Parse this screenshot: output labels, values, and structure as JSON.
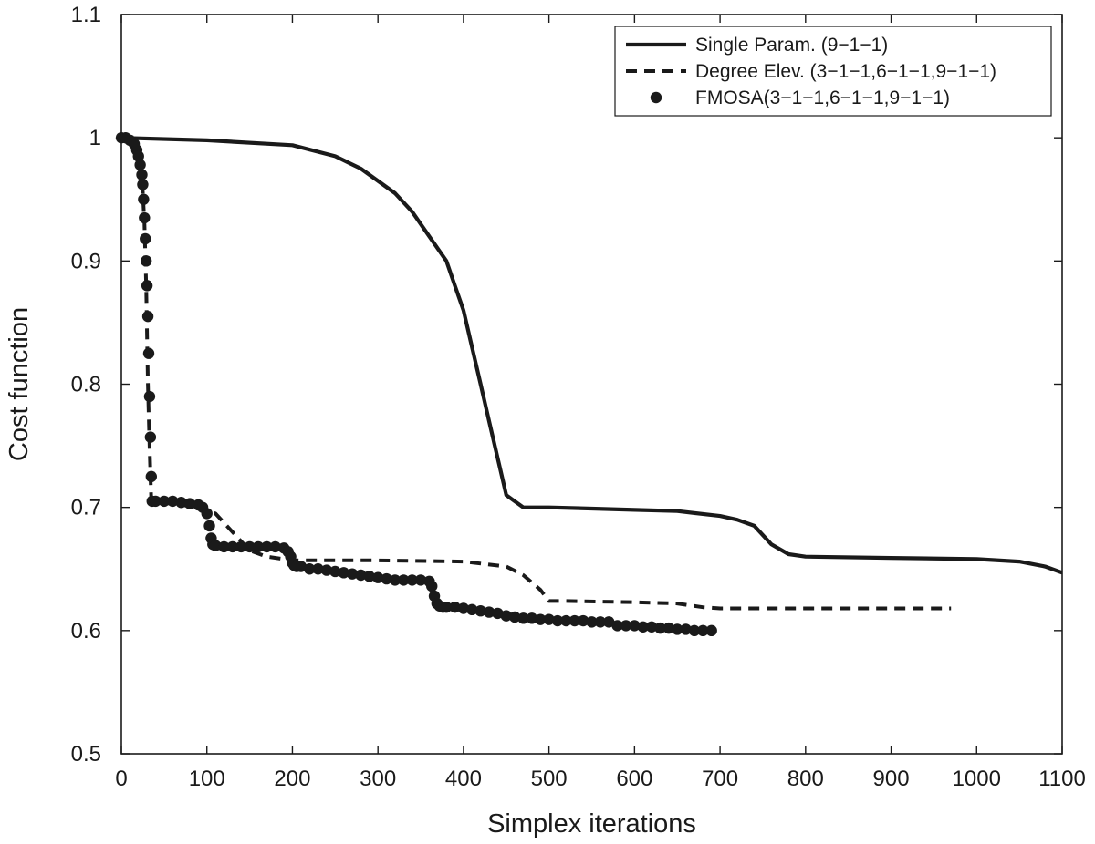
{
  "chart_data": {
    "type": "line",
    "title": "",
    "xlabel": "Simplex iterations",
    "ylabel": "Cost function",
    "xlim": [
      0,
      1100
    ],
    "ylim": [
      0.5,
      1.1
    ],
    "xticks": [
      0,
      100,
      200,
      300,
      400,
      500,
      600,
      700,
      800,
      900,
      1000,
      1100
    ],
    "yticks": [
      0.5,
      0.6,
      0.7,
      0.8,
      0.9,
      1,
      1.1
    ],
    "xtick_labels": [
      "0",
      "100",
      "200",
      "300",
      "400",
      "500",
      "600",
      "700",
      "800",
      "900",
      "1000",
      "1100"
    ],
    "ytick_labels": [
      "0.5",
      "0.6",
      "0.7",
      "0.8",
      "0.9",
      "1",
      "1.1"
    ],
    "grid": false,
    "legend_position": "top-right",
    "series": [
      {
        "name": "Single Param. (9−1−1)",
        "style": "solid",
        "color": "#1a1a1a",
        "x": [
          0,
          100,
          200,
          250,
          280,
          300,
          320,
          340,
          360,
          380,
          390,
          400,
          410,
          420,
          430,
          440,
          450,
          460,
          470,
          500,
          550,
          600,
          650,
          700,
          720,
          740,
          760,
          780,
          800,
          900,
          1000,
          1050,
          1080,
          1100
        ],
        "y": [
          1.0,
          0.998,
          0.994,
          0.985,
          0.975,
          0.965,
          0.955,
          0.94,
          0.92,
          0.9,
          0.88,
          0.86,
          0.83,
          0.8,
          0.77,
          0.74,
          0.71,
          0.705,
          0.7,
          0.7,
          0.699,
          0.698,
          0.697,
          0.693,
          0.69,
          0.685,
          0.67,
          0.662,
          0.66,
          0.659,
          0.658,
          0.656,
          0.652,
          0.647
        ]
      },
      {
        "name": "Degree Elev. (3−1−1,6−1−1,9−1−1)",
        "style": "dashed",
        "color": "#1a1a1a",
        "x": [
          0,
          10,
          20,
          24,
          27,
          29,
          31,
          33,
          35,
          40,
          60,
          90,
          110,
          130,
          150,
          170,
          190,
          200,
          220,
          300,
          400,
          450,
          470,
          490,
          500,
          520,
          600,
          650,
          680,
          700,
          800,
          970
        ],
        "y": [
          1.0,
          0.998,
          0.99,
          0.97,
          0.93,
          0.88,
          0.8,
          0.75,
          0.705,
          0.704,
          0.703,
          0.7,
          0.695,
          0.68,
          0.665,
          0.66,
          0.658,
          0.657,
          0.657,
          0.657,
          0.656,
          0.652,
          0.645,
          0.633,
          0.624,
          0.624,
          0.623,
          0.622,
          0.619,
          0.618,
          0.618,
          0.618
        ]
      },
      {
        "name": "FMOSA(3−1−1,6−1−1,9−1−1)",
        "style": "markers",
        "color": "#1a1a1a",
        "x": [
          0,
          5,
          10,
          15,
          18,
          20,
          22,
          24,
          25,
          26,
          27,
          28,
          29,
          30,
          31,
          32,
          33,
          34,
          35,
          36,
          40,
          50,
          60,
          70,
          80,
          90,
          95,
          100,
          103,
          105,
          107,
          110,
          120,
          130,
          140,
          150,
          160,
          170,
          180,
          190,
          195,
          198,
          200,
          202,
          205,
          210,
          220,
          230,
          240,
          250,
          260,
          270,
          280,
          290,
          300,
          310,
          320,
          330,
          340,
          350,
          360,
          363,
          366,
          369,
          372,
          376,
          380,
          390,
          400,
          410,
          420,
          430,
          440,
          450,
          460,
          470,
          480,
          490,
          500,
          510,
          520,
          530,
          540,
          550,
          560,
          570,
          580,
          590,
          600,
          610,
          620,
          630,
          640,
          650,
          660,
          670,
          680,
          690
        ],
        "y": [
          1.0,
          1.0,
          0.998,
          0.995,
          0.99,
          0.985,
          0.978,
          0.97,
          0.962,
          0.95,
          0.935,
          0.918,
          0.9,
          0.88,
          0.855,
          0.825,
          0.79,
          0.757,
          0.725,
          0.705,
          0.705,
          0.705,
          0.705,
          0.704,
          0.703,
          0.702,
          0.7,
          0.695,
          0.685,
          0.675,
          0.67,
          0.669,
          0.668,
          0.668,
          0.668,
          0.668,
          0.668,
          0.668,
          0.668,
          0.667,
          0.664,
          0.66,
          0.655,
          0.653,
          0.652,
          0.652,
          0.65,
          0.65,
          0.649,
          0.648,
          0.647,
          0.646,
          0.645,
          0.644,
          0.643,
          0.642,
          0.641,
          0.641,
          0.641,
          0.641,
          0.64,
          0.636,
          0.628,
          0.622,
          0.62,
          0.619,
          0.619,
          0.619,
          0.618,
          0.617,
          0.616,
          0.615,
          0.614,
          0.612,
          0.611,
          0.61,
          0.61,
          0.609,
          0.609,
          0.608,
          0.608,
          0.608,
          0.608,
          0.607,
          0.607,
          0.607,
          0.604,
          0.604,
          0.604,
          0.603,
          0.603,
          0.602,
          0.602,
          0.601,
          0.601,
          0.6,
          0.6,
          0.6
        ]
      }
    ]
  }
}
